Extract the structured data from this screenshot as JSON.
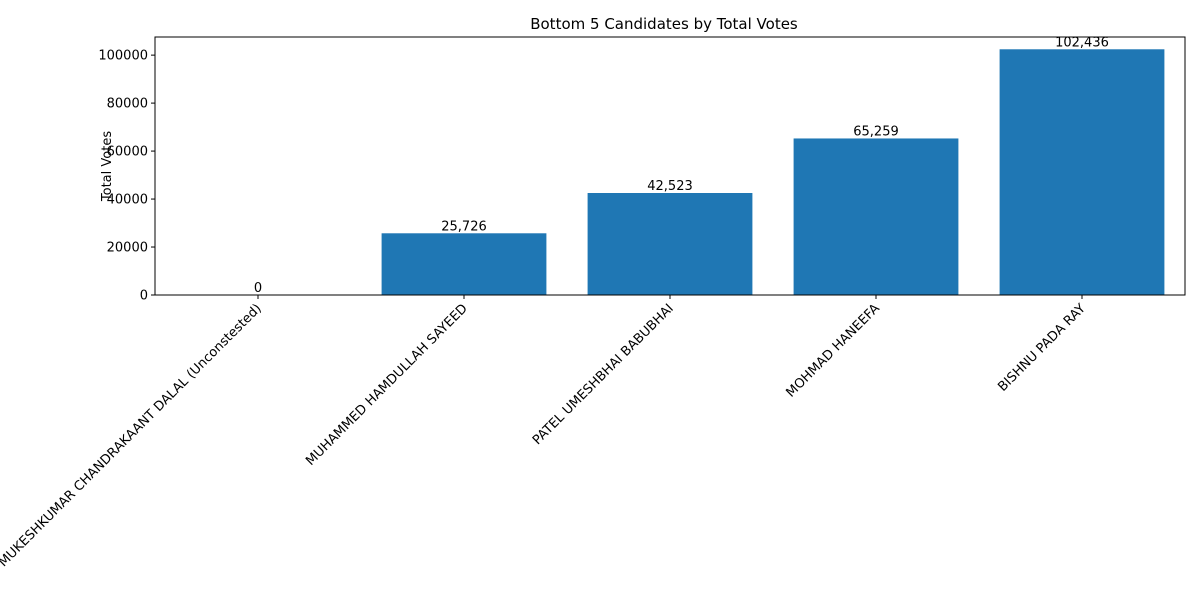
{
  "chart_data": {
    "type": "bar",
    "title": "Bottom 5 Candidates by Total Votes",
    "xlabel": "",
    "ylabel": "Total Votes",
    "categories": [
      "MUKESHKUMAR CHANDRAKAANT DALAL (Unconstested)",
      "MUHAMMED HAMDULLAH SAYEED",
      "PATEL UMESHBHAI BABUBHAI",
      "MOHMAD HANEEFA",
      "BISHNU PADA RAY"
    ],
    "values": [
      0,
      25726,
      42523,
      65259,
      102436
    ],
    "value_labels": [
      "0",
      "25,726",
      "42,523",
      "65,259",
      "102,436"
    ],
    "ylim": [
      0,
      107558
    ],
    "yticks": [
      0,
      20000,
      40000,
      60000,
      80000,
      100000
    ],
    "ytick_labels": [
      "0",
      "20000",
      "40000",
      "60000",
      "80000",
      "100000"
    ],
    "grid": false,
    "bar_color": "#1f77b4"
  }
}
